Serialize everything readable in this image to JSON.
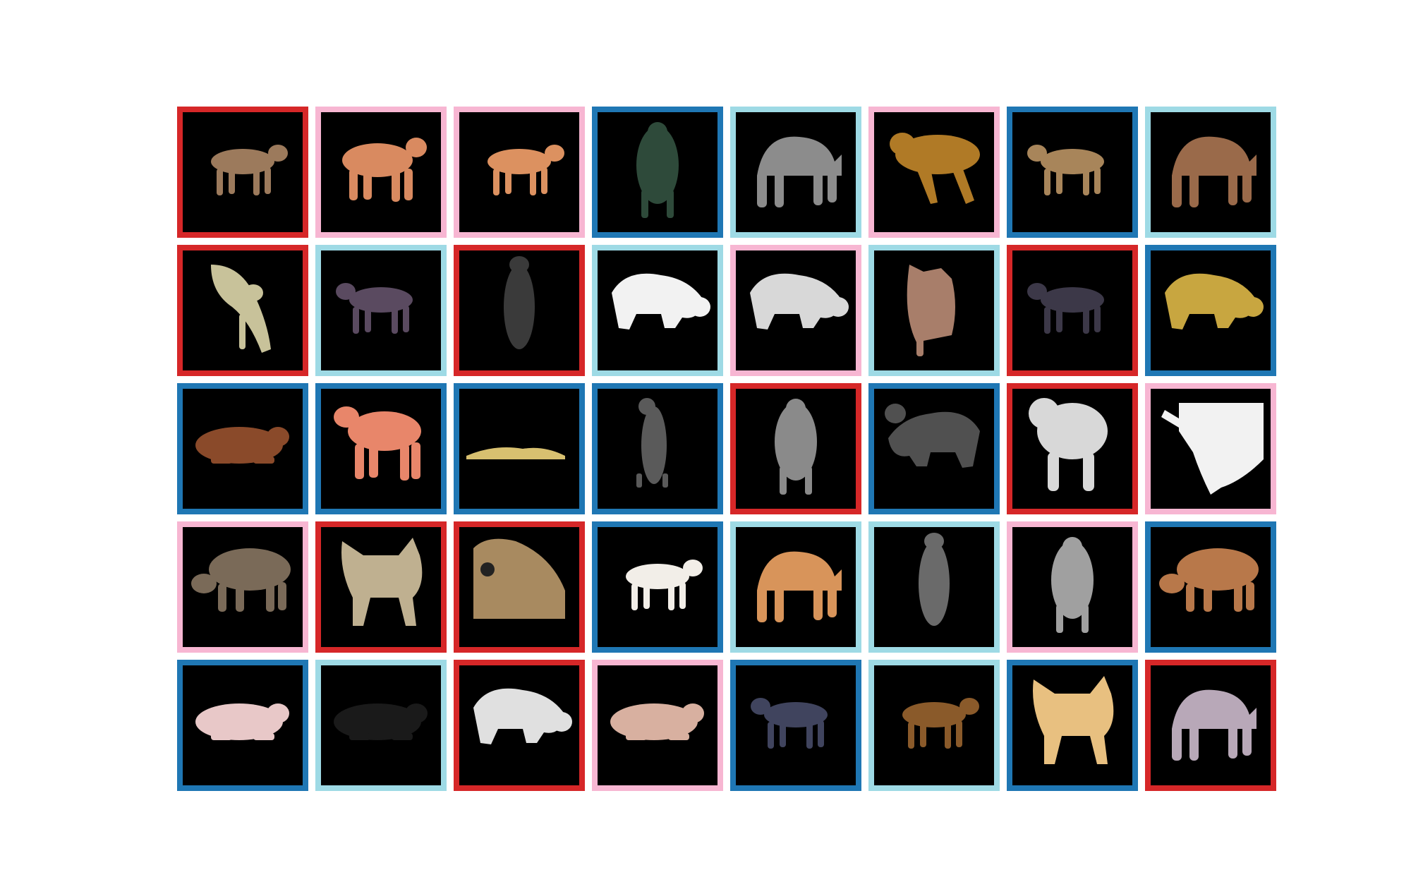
{
  "frame_colors": {
    "red": "#d62728",
    "pink": "#f7b6d2",
    "dark-blue": "#1f77b4",
    "light-blue": "#9edae5"
  },
  "tiles": [
    {
      "frame": "red",
      "fur": "#9c7a5c",
      "pose": "walk-left"
    },
    {
      "frame": "pink",
      "fur": "#d98a60",
      "pose": "stand-right"
    },
    {
      "frame": "pink",
      "fur": "#dc9160",
      "pose": "walk-left"
    },
    {
      "frame": "dark-blue",
      "fur": "#2e4a3a",
      "pose": "back-up"
    },
    {
      "frame": "light-blue",
      "fur": "#8c8c8c",
      "pose": "arched"
    },
    {
      "frame": "pink",
      "fur": "#b07a26",
      "pose": "leap-left"
    },
    {
      "frame": "dark-blue",
      "fur": "#a8855a",
      "pose": "walk-right"
    },
    {
      "frame": "light-blue",
      "fur": "#9a6a4a",
      "pose": "arched"
    },
    {
      "frame": "red",
      "fur": "#c8c29a",
      "pose": "descend"
    },
    {
      "frame": "light-blue",
      "fur": "#5a4a60",
      "pose": "walk-right"
    },
    {
      "frame": "red",
      "fur": "#3a3a3a",
      "pose": "vertical"
    },
    {
      "frame": "light-blue",
      "fur": "#f2f2f2",
      "pose": "crouch-right"
    },
    {
      "frame": "pink",
      "fur": "#d8d8d8",
      "pose": "crouch-right"
    },
    {
      "frame": "light-blue",
      "fur": "#a87e6a",
      "pose": "sit-back"
    },
    {
      "frame": "red",
      "fur": "#3c3848",
      "pose": "walk-right"
    },
    {
      "frame": "dark-blue",
      "fur": "#c8a640",
      "pose": "crouch-right"
    },
    {
      "frame": "dark-blue",
      "fur": "#8a4a2a",
      "pose": "lie-right"
    },
    {
      "frame": "dark-blue",
      "fur": "#e8866a",
      "pose": "stand-left"
    },
    {
      "frame": "dark-blue",
      "fur": "#d8c070",
      "pose": "flat"
    },
    {
      "frame": "dark-blue",
      "fur": "#5a5a5a",
      "pose": "vertical-walk"
    },
    {
      "frame": "red",
      "fur": "#8a8a8a",
      "pose": "back-up"
    },
    {
      "frame": "dark-blue",
      "fur": "#505050",
      "pose": "crouch-left"
    },
    {
      "frame": "red",
      "fur": "#d8d8d8",
      "pose": "sit-front"
    },
    {
      "frame": "pink",
      "fur": "#f2f2f2",
      "pose": "rear-close"
    },
    {
      "frame": "pink",
      "fur": "#7a6a58",
      "pose": "stalk-left"
    },
    {
      "frame": "red",
      "fur": "#bfb090",
      "pose": "rear"
    },
    {
      "frame": "red",
      "fur": "#a88a60",
      "pose": "close-up"
    },
    {
      "frame": "dark-blue",
      "fur": "#f2eee8",
      "pose": "walk-left"
    },
    {
      "frame": "light-blue",
      "fur": "#d8945a",
      "pose": "arched"
    },
    {
      "frame": "light-blue",
      "fur": "#6a6a6a",
      "pose": "vertical"
    },
    {
      "frame": "pink",
      "fur": "#a0a0a0",
      "pose": "back-up"
    },
    {
      "frame": "dark-blue",
      "fur": "#b8784a",
      "pose": "stalk-left"
    },
    {
      "frame": "dark-blue",
      "fur": "#e8c8c8",
      "pose": "lie-right"
    },
    {
      "frame": "light-blue",
      "fur": "#1a1a1a",
      "pose": "lie-right"
    },
    {
      "frame": "red",
      "fur": "#e0e0e0",
      "pose": "crouch-right"
    },
    {
      "frame": "pink",
      "fur": "#d8b0a0",
      "pose": "lie-right"
    },
    {
      "frame": "dark-blue",
      "fur": "#40445e",
      "pose": "walk-right"
    },
    {
      "frame": "light-blue",
      "fur": "#8a5a2a",
      "pose": "walk-left"
    },
    {
      "frame": "dark-blue",
      "fur": "#e8c080",
      "pose": "rear"
    },
    {
      "frame": "red",
      "fur": "#b8a8b8",
      "pose": "arched"
    }
  ]
}
